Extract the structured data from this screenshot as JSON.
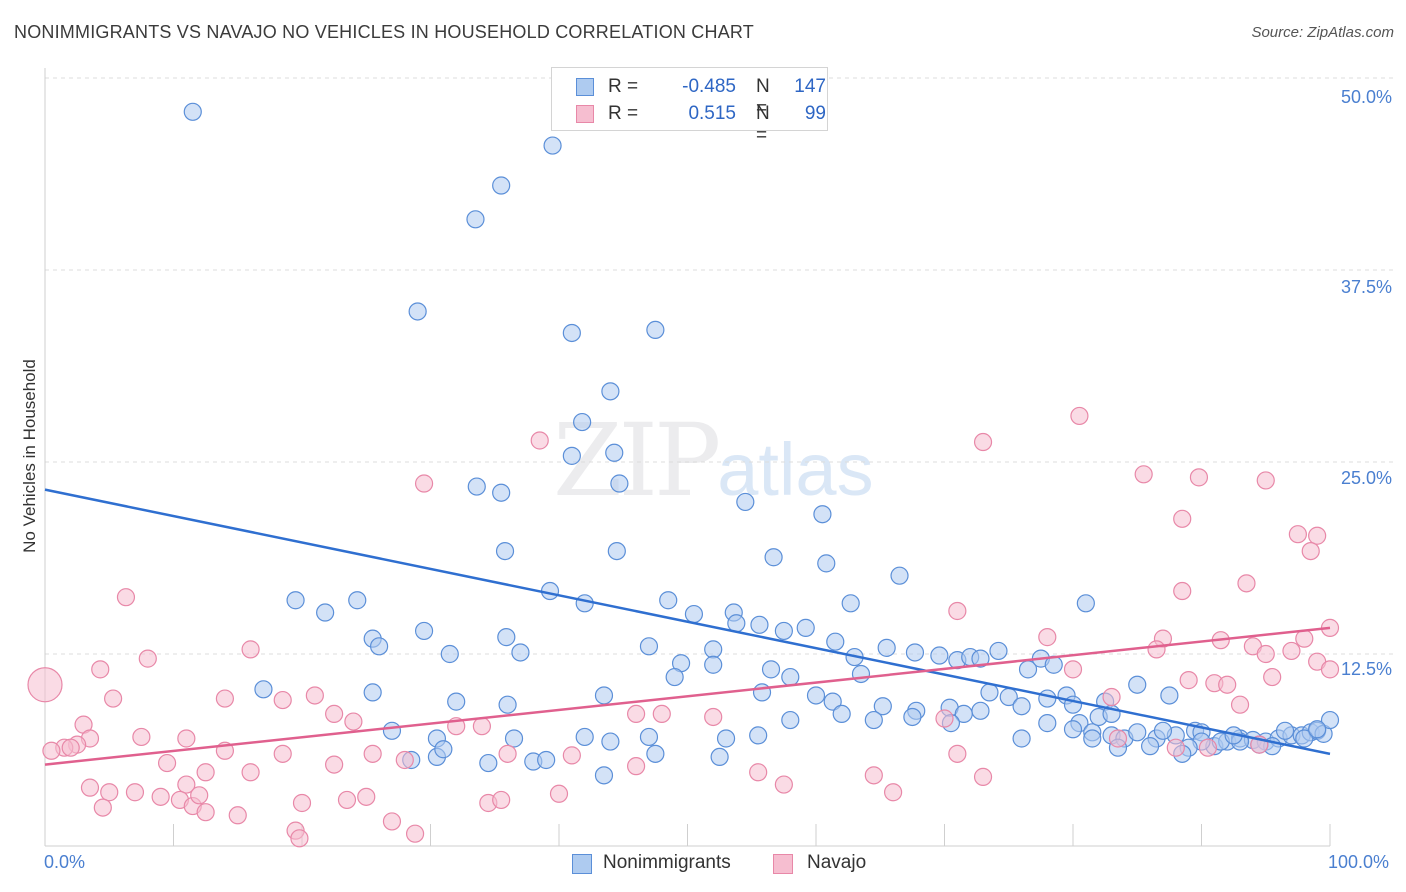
{
  "title": "NONIMMIGRANTS VS NAVAJO NO VEHICLES IN HOUSEHOLD CORRELATION CHART",
  "source": "Source: ZipAtlas.com",
  "watermark": {
    "zip": "ZIP",
    "atlas": "atlas"
  },
  "legend": {
    "r_label": "R =",
    "n_label": "N =",
    "rows": [
      {
        "name": "Nonimmigrants",
        "r": "-0.485",
        "n": "147"
      },
      {
        "name": "Navajo",
        "r": "0.515",
        "n": "99"
      }
    ]
  },
  "colors": {
    "blue_fill": "#aecbf0",
    "blue_stroke": "#5b8fd8",
    "blue_line": "#2f6fd0",
    "pink_fill": "#f6bed0",
    "pink_stroke": "#e888a8",
    "pink_line": "#e0608e",
    "tick_text": "#4a7fd0",
    "grid": "#dcdcdc"
  },
  "chart_data": {
    "type": "scatter",
    "title": "NONIMMIGRANTS VS NAVAJO NO VEHICLES IN HOUSEHOLD CORRELATION CHART",
    "xlabel": "",
    "ylabel": "No Vehicles in Household",
    "x_tick_labels": [
      "0.0%",
      "100.0%"
    ],
    "y_tick_labels": [
      "12.5%",
      "25.0%",
      "37.5%",
      "50.0%"
    ],
    "y_ticks": [
      12.5,
      25.0,
      37.5,
      50.0
    ],
    "xlim": [
      0,
      100
    ],
    "ylim": [
      0,
      50
    ],
    "grid": true,
    "legend_position": "top-center",
    "series": [
      {
        "name": "Nonimmigrants",
        "r": -0.485,
        "n": 147,
        "trend": {
          "x": [
            0,
            100
          ],
          "y": [
            23.2,
            6.0
          ]
        },
        "points": [
          [
            11.5,
            47.8
          ],
          [
            39.5,
            45.6
          ],
          [
            35.5,
            43.0
          ],
          [
            33.5,
            40.8
          ],
          [
            29.0,
            34.8
          ],
          [
            47.5,
            33.6
          ],
          [
            41.0,
            33.4
          ],
          [
            44.0,
            29.6
          ],
          [
            41.8,
            27.6
          ],
          [
            44.3,
            25.6
          ],
          [
            41.0,
            25.4
          ],
          [
            44.7,
            23.6
          ],
          [
            33.6,
            23.4
          ],
          [
            35.5,
            23.0
          ],
          [
            54.5,
            22.4
          ],
          [
            60.5,
            21.6
          ],
          [
            35.8,
            19.2
          ],
          [
            44.5,
            19.2
          ],
          [
            56.7,
            18.8
          ],
          [
            60.8,
            18.4
          ],
          [
            66.5,
            17.6
          ],
          [
            39.3,
            16.6
          ],
          [
            19.5,
            16.0
          ],
          [
            24.3,
            16.0
          ],
          [
            48.5,
            16.0
          ],
          [
            42.0,
            15.8
          ],
          [
            21.8,
            15.2
          ],
          [
            53.6,
            15.2
          ],
          [
            62.7,
            15.8
          ],
          [
            81.0,
            15.8
          ],
          [
            50.5,
            15.1
          ],
          [
            53.8,
            14.5
          ],
          [
            55.6,
            14.4
          ],
          [
            57.5,
            14.0
          ],
          [
            59.2,
            14.2
          ],
          [
            47.0,
            13.0
          ],
          [
            35.9,
            13.6
          ],
          [
            52.0,
            12.8
          ],
          [
            25.5,
            13.5
          ],
          [
            29.5,
            14.0
          ],
          [
            26.0,
            13.0
          ],
          [
            31.5,
            12.5
          ],
          [
            37.0,
            12.6
          ],
          [
            61.5,
            13.3
          ],
          [
            65.5,
            12.9
          ],
          [
            63.0,
            12.3
          ],
          [
            67.7,
            12.6
          ],
          [
            69.6,
            12.4
          ],
          [
            71.0,
            12.1
          ],
          [
            72.0,
            12.3
          ],
          [
            72.8,
            12.2
          ],
          [
            74.2,
            12.7
          ],
          [
            76.5,
            11.5
          ],
          [
            77.5,
            12.2
          ],
          [
            78.5,
            11.8
          ],
          [
            49.5,
            11.9
          ],
          [
            52.0,
            11.8
          ],
          [
            56.5,
            11.5
          ],
          [
            49.0,
            11.0
          ],
          [
            58.0,
            11.0
          ],
          [
            63.5,
            11.2
          ],
          [
            73.5,
            10.0
          ],
          [
            75.0,
            9.7
          ],
          [
            76.0,
            9.1
          ],
          [
            78.0,
            9.6
          ],
          [
            79.5,
            9.8
          ],
          [
            80.0,
            9.2
          ],
          [
            82.5,
            9.4
          ],
          [
            85.0,
            10.5
          ],
          [
            87.5,
            9.8
          ],
          [
            25.5,
            10.0
          ],
          [
            17.0,
            10.2
          ],
          [
            32.0,
            9.4
          ],
          [
            36.0,
            9.2
          ],
          [
            43.5,
            9.8
          ],
          [
            55.8,
            10.0
          ],
          [
            60.0,
            9.8
          ],
          [
            61.3,
            9.4
          ],
          [
            65.2,
            9.1
          ],
          [
            67.8,
            8.8
          ],
          [
            70.4,
            9.0
          ],
          [
            71.5,
            8.6
          ],
          [
            72.8,
            8.8
          ],
          [
            27.0,
            7.5
          ],
          [
            30.5,
            7.0
          ],
          [
            36.5,
            7.0
          ],
          [
            42.0,
            7.1
          ],
          [
            47.0,
            7.1
          ],
          [
            53.0,
            7.0
          ],
          [
            58.0,
            8.2
          ],
          [
            62.0,
            8.6
          ],
          [
            64.5,
            8.2
          ],
          [
            67.5,
            8.4
          ],
          [
            70.5,
            8.0
          ],
          [
            76.0,
            7.0
          ],
          [
            78.0,
            8.0
          ],
          [
            80.5,
            8.0
          ],
          [
            81.5,
            7.4
          ],
          [
            82.0,
            8.4
          ],
          [
            83.0,
            7.2
          ],
          [
            84.0,
            7.0
          ],
          [
            86.5,
            7.0
          ],
          [
            88.0,
            7.2
          ],
          [
            89.5,
            7.5
          ],
          [
            90.0,
            7.4
          ],
          [
            91.0,
            6.5
          ],
          [
            92.0,
            6.8
          ],
          [
            93.0,
            7.0
          ],
          [
            94.0,
            6.9
          ],
          [
            95.0,
            6.8
          ],
          [
            96.0,
            7.0
          ],
          [
            97.0,
            7.2
          ],
          [
            97.8,
            7.2
          ],
          [
            98.5,
            7.4
          ],
          [
            99.0,
            7.5
          ],
          [
            99.5,
            7.3
          ],
          [
            98.0,
            7.0
          ],
          [
            95.5,
            6.5
          ],
          [
            94.5,
            6.6
          ],
          [
            93.0,
            6.8
          ],
          [
            91.5,
            6.8
          ],
          [
            90.0,
            6.8
          ],
          [
            89.0,
            6.4
          ],
          [
            88.5,
            6.0
          ],
          [
            86.0,
            6.5
          ],
          [
            85.0,
            7.4
          ],
          [
            83.5,
            6.4
          ],
          [
            81.5,
            7.0
          ],
          [
            80.0,
            7.6
          ],
          [
            83.0,
            8.6
          ],
          [
            87.0,
            7.5
          ],
          [
            92.5,
            7.2
          ],
          [
            96.5,
            7.5
          ],
          [
            100.0,
            8.2
          ],
          [
            99.0,
            7.6
          ],
          [
            34.5,
            5.4
          ],
          [
            38.0,
            5.5
          ],
          [
            39.0,
            5.6
          ],
          [
            28.5,
            5.6
          ],
          [
            30.5,
            5.8
          ],
          [
            47.5,
            6.0
          ],
          [
            52.5,
            5.8
          ],
          [
            55.5,
            7.2
          ],
          [
            31.0,
            6.3
          ],
          [
            44.0,
            6.8
          ],
          [
            43.5,
            4.6
          ]
        ]
      },
      {
        "name": "Navajo",
        "r": 0.515,
        "n": 99,
        "trend": {
          "x": [
            0,
            100
          ],
          "y": [
            5.3,
            14.2
          ]
        },
        "points": [
          [
            80.5,
            28.0
          ],
          [
            73.0,
            26.3
          ],
          [
            38.5,
            26.4
          ],
          [
            29.5,
            23.6
          ],
          [
            85.5,
            24.2
          ],
          [
            89.8,
            24.0
          ],
          [
            95.0,
            23.8
          ],
          [
            88.5,
            21.3
          ],
          [
            97.5,
            20.3
          ],
          [
            99.0,
            20.2
          ],
          [
            98.5,
            19.2
          ],
          [
            93.5,
            17.1
          ],
          [
            88.5,
            16.6
          ],
          [
            6.3,
            16.2
          ],
          [
            71.0,
            15.3
          ],
          [
            8.0,
            12.2
          ],
          [
            16.0,
            12.8
          ],
          [
            94.0,
            13.0
          ],
          [
            98.0,
            13.5
          ],
          [
            100.0,
            14.2
          ],
          [
            78.0,
            13.6
          ],
          [
            91.5,
            13.4
          ],
          [
            87.0,
            13.5
          ],
          [
            86.5,
            12.8
          ],
          [
            4.3,
            11.5
          ],
          [
            97.0,
            12.7
          ],
          [
            95.0,
            12.5
          ],
          [
            99.0,
            12.0
          ],
          [
            80.0,
            11.5
          ],
          [
            100.0,
            11.5
          ],
          [
            95.5,
            11.0
          ],
          [
            89.0,
            10.8
          ],
          [
            91.0,
            10.6
          ],
          [
            92.0,
            10.5
          ],
          [
            83.0,
            9.7
          ],
          [
            5.3,
            9.6
          ],
          [
            14.0,
            9.6
          ],
          [
            21.0,
            9.8
          ],
          [
            18.5,
            9.5
          ],
          [
            93.0,
            9.2
          ],
          [
            70.0,
            8.3
          ],
          [
            48.0,
            8.6
          ],
          [
            46.0,
            8.6
          ],
          [
            52.0,
            8.4
          ],
          [
            22.5,
            8.6
          ],
          [
            24.0,
            8.1
          ],
          [
            34.0,
            7.8
          ],
          [
            3.0,
            7.9
          ],
          [
            32.0,
            7.8
          ],
          [
            3.5,
            7.0
          ],
          [
            11.0,
            7.0
          ],
          [
            7.5,
            7.1
          ],
          [
            2.5,
            6.6
          ],
          [
            1.5,
            6.4
          ],
          [
            0.5,
            6.2
          ],
          [
            14.0,
            6.2
          ],
          [
            18.5,
            6.0
          ],
          [
            25.5,
            6.0
          ],
          [
            36.0,
            6.0
          ],
          [
            41.0,
            5.9
          ],
          [
            71.0,
            6.0
          ],
          [
            83.5,
            7.0
          ],
          [
            88.0,
            6.4
          ],
          [
            90.5,
            6.4
          ],
          [
            94.5,
            6.6
          ],
          [
            0.0,
            10.5
          ],
          [
            2.0,
            6.4
          ],
          [
            9.5,
            5.4
          ],
          [
            12.5,
            4.8
          ],
          [
            11.0,
            4.0
          ],
          [
            16.0,
            4.8
          ],
          [
            22.5,
            5.3
          ],
          [
            28.0,
            5.6
          ],
          [
            46.0,
            5.2
          ],
          [
            55.5,
            4.8
          ],
          [
            57.5,
            4.0
          ],
          [
            64.5,
            4.6
          ],
          [
            73.0,
            4.5
          ],
          [
            3.5,
            3.8
          ],
          [
            5.0,
            3.5
          ],
          [
            7.0,
            3.5
          ],
          [
            9.0,
            3.2
          ],
          [
            10.5,
            3.0
          ],
          [
            11.5,
            2.6
          ],
          [
            12.5,
            2.2
          ],
          [
            20.0,
            2.8
          ],
          [
            23.5,
            3.0
          ],
          [
            25.0,
            3.2
          ],
          [
            34.5,
            2.8
          ],
          [
            35.5,
            3.0
          ],
          [
            4.5,
            2.5
          ],
          [
            15.0,
            2.0
          ],
          [
            27.0,
            1.6
          ],
          [
            28.8,
            0.8
          ],
          [
            19.5,
            1.0
          ],
          [
            19.8,
            0.5
          ],
          [
            66.0,
            3.5
          ],
          [
            12.0,
            3.3
          ],
          [
            40.0,
            3.4
          ]
        ]
      }
    ]
  }
}
